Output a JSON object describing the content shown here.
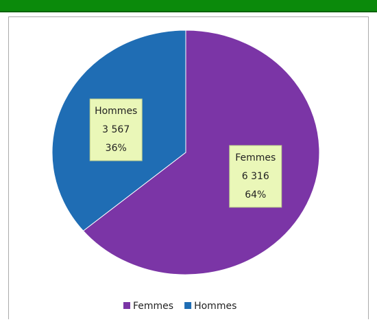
{
  "chart_data": {
    "type": "pie",
    "categories": [
      "Femmes",
      "Hommes"
    ],
    "values": [
      6316,
      3567
    ],
    "value_labels": [
      "6 316",
      "3 567"
    ],
    "percent_values": [
      64,
      36
    ],
    "percent_labels": [
      "64%",
      "36%"
    ],
    "colors": [
      "#7b35a6",
      "#1f6db4"
    ],
    "legend": "bottom"
  }
}
